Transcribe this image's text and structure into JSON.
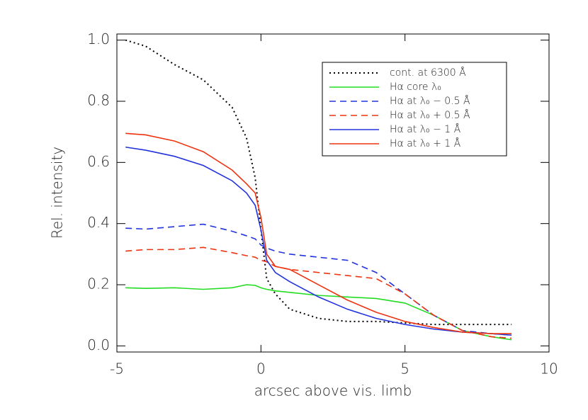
{
  "chart_data": {
    "type": "line",
    "xlabel": "arcsec above vis. limb",
    "ylabel": "Rel. intensity",
    "x": [
      -4.7,
      -4,
      -3,
      -2,
      -1,
      -0.5,
      -0.2,
      0,
      0.2,
      0.5,
      1,
      2,
      3,
      4,
      5,
      6,
      7,
      8,
      8.7
    ],
    "series": [
      {
        "name": "cont. at 6300 Å",
        "color": "#000000",
        "dash": "dotted",
        "values": [
          1.0,
          0.98,
          0.92,
          0.87,
          0.78,
          0.68,
          0.55,
          0.38,
          0.22,
          0.17,
          0.12,
          0.09,
          0.08,
          0.08,
          0.075,
          0.07,
          0.07,
          0.07,
          0.07
        ]
      },
      {
        "name": "Hα core λ₀",
        "color": "#22dd22",
        "dash": "solid",
        "values": [
          0.19,
          0.188,
          0.19,
          0.185,
          0.19,
          0.2,
          0.198,
          0.19,
          0.185,
          0.18,
          0.175,
          0.165,
          0.16,
          0.155,
          0.14,
          0.1,
          0.05,
          0.03,
          0.02
        ]
      },
      {
        "name": "Hα at λ₀ − 0.5 Å",
        "color": "#2233dd",
        "dash": "dashed",
        "values": [
          0.385,
          0.382,
          0.39,
          0.398,
          0.375,
          0.36,
          0.35,
          0.33,
          0.32,
          0.31,
          0.3,
          0.29,
          0.28,
          0.24,
          0.17,
          0.1,
          0.05,
          0.04,
          0.035
        ]
      },
      {
        "name": "Hα at λ₀ + 0.5 Å",
        "color": "#ee3311",
        "dash": "dashed",
        "values": [
          0.31,
          0.315,
          0.315,
          0.322,
          0.305,
          0.295,
          0.29,
          0.28,
          0.275,
          0.26,
          0.25,
          0.24,
          0.23,
          0.22,
          0.17,
          0.1,
          0.05,
          0.03,
          0.025
        ]
      },
      {
        "name": "Hα at λ₀ − 1 Å",
        "color": "#2233dd",
        "dash": "solid",
        "values": [
          0.65,
          0.64,
          0.62,
          0.59,
          0.54,
          0.5,
          0.46,
          0.38,
          0.28,
          0.24,
          0.21,
          0.16,
          0.12,
          0.09,
          0.07,
          0.055,
          0.045,
          0.04,
          0.035
        ]
      },
      {
        "name": "Hα at λ₀ + 1 Å",
        "color": "#ee3311",
        "dash": "solid",
        "values": [
          0.695,
          0.69,
          0.67,
          0.635,
          0.575,
          0.53,
          0.5,
          0.42,
          0.3,
          0.26,
          0.25,
          0.2,
          0.15,
          0.11,
          0.08,
          0.06,
          0.045,
          0.04,
          0.04
        ]
      }
    ],
    "xlim": [
      -5,
      10
    ],
    "xticks": [
      -5,
      0,
      5,
      10
    ],
    "ylim": [
      -0.02,
      1.02
    ],
    "yticks": [
      {
        "value": 0,
        "label": "0.0"
      },
      0.2,
      0.4,
      0.6,
      0.8,
      {
        "value": 1,
        "label": "1.0"
      }
    ],
    "legend": "upper right"
  }
}
